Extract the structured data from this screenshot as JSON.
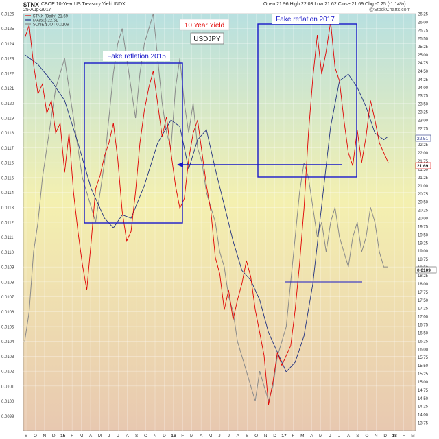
{
  "header": {
    "symbol": "$TNX",
    "description": "CBOE 10-Year US Treasury Yield INDX",
    "date": "25-Aug-2017",
    "ohlc": [
      {
        "label": "Open",
        "value": "21.96"
      },
      {
        "label": "High",
        "value": "22.03"
      },
      {
        "label": "Low",
        "value": "21.62"
      },
      {
        "label": "Close",
        "value": "21.69"
      },
      {
        "label": "Chg",
        "value": "-0.25 (-1.14%)"
      }
    ],
    "watermark": "@StockCharts.com"
  },
  "legend": [
    {
      "text": "$TNX (Daily) 21.69",
      "color": "#e00000"
    },
    {
      "text": "MA(50) 22.51",
      "color": "#203080"
    },
    {
      "text": "$ONE:$JOT 0.0109",
      "color": "#8a8a8a"
    }
  ],
  "annotations": {
    "red_label": "10 Year Yield",
    "usdjpy_label": "USDJPY",
    "box_2015": "Fake reflation 2015",
    "box_2017": "Fake reflation 2017"
  },
  "price_badges": {
    "ma": "22.51",
    "close": "21.69",
    "ratio": "0.0109"
  },
  "colors": {
    "tnx": "#e00000",
    "ma": "#203080",
    "ratio": "#8a8a8a",
    "annotation": "#1818c8",
    "bg_top": "#b8e0e0",
    "bg_mid": "#f4f0b0",
    "bg_bottom": "#e8c8b0"
  },
  "chart_data": {
    "type": "line",
    "left_axis": {
      "min": 0.0098,
      "max": 0.0126,
      "ticks": [
        "0.0126",
        "0.0125",
        "0.0124",
        "0.0123",
        "0.0122",
        "0.0121",
        "0.0120",
        "0.0119",
        "0.0118",
        "0.0117",
        "0.0116",
        "0.0115",
        "0.0114",
        "0.0113",
        "0.0112",
        "0.0111",
        "0.0110",
        "0.0109",
        "0.0108",
        "0.0107",
        "0.0106",
        "0.0105",
        "0.0104",
        "0.0103",
        "0.0102",
        "0.0101",
        "0.0100",
        "0.0099"
      ]
    },
    "right_axis": {
      "min": 13.5,
      "max": 26.25,
      "ticks": [
        "26.25",
        "26.00",
        "25.75",
        "25.50",
        "25.25",
        "25.00",
        "24.75",
        "24.50",
        "24.25",
        "24.00",
        "23.75",
        "23.50",
        "23.25",
        "23.00",
        "22.75",
        "22.50",
        "22.25",
        "22.00",
        "21.75",
        "21.50",
        "21.25",
        "21.00",
        "20.75",
        "20.50",
        "20.25",
        "20.00",
        "19.75",
        "19.50",
        "19.25",
        "19.00",
        "18.75",
        "18.50",
        "18.25",
        "18.00",
        "17.75",
        "17.50",
        "17.25",
        "17.00",
        "16.75",
        "16.50",
        "16.25",
        "16.00",
        "15.75",
        "15.50",
        "15.25",
        "15.00",
        "14.75",
        "14.50",
        "14.25",
        "14.00",
        "13.75"
      ]
    },
    "x_labels": [
      "S",
      "O",
      "N",
      "D",
      "15",
      "F",
      "M",
      "A",
      "M",
      "J",
      "J",
      "A",
      "S",
      "O",
      "N",
      "D",
      "16",
      "F",
      "M",
      "A",
      "M",
      "J",
      "J",
      "A",
      "S",
      "O",
      "N",
      "D",
      "17",
      "F",
      "M",
      "A",
      "M",
      "J",
      "J",
      "A",
      "S",
      "O",
      "N",
      "D",
      "18",
      "F",
      "M"
    ],
    "x_label_bold": [
      "15",
      "16",
      "17",
      "18"
    ],
    "series": [
      {
        "name": "$TNX (Daily) 21.69",
        "axis": "right",
        "points": [
          [
            0,
            25.5
          ],
          [
            1,
            25.9
          ],
          [
            2,
            24.7
          ],
          [
            3,
            23.8
          ],
          [
            4,
            24.1
          ],
          [
            5,
            23.2
          ],
          [
            6,
            23.6
          ],
          [
            7,
            22.6
          ],
          [
            8,
            22.9
          ],
          [
            9,
            21.4
          ],
          [
            10,
            22.6
          ],
          [
            11,
            20.8
          ],
          [
            12,
            19.6
          ],
          [
            13,
            18.6
          ],
          [
            14,
            17.8
          ],
          [
            15,
            19.3
          ],
          [
            16,
            20.9
          ],
          [
            17,
            21.3
          ],
          [
            18,
            21.9
          ],
          [
            19,
            22.3
          ],
          [
            20,
            22.9
          ],
          [
            21,
            21.8
          ],
          [
            22,
            20.2
          ],
          [
            23,
            19.3
          ],
          [
            24,
            19.6
          ],
          [
            25,
            20.8
          ],
          [
            26,
            22.3
          ],
          [
            27,
            23.3
          ],
          [
            28,
            24.0
          ],
          [
            29,
            24.5
          ],
          [
            30,
            23.5
          ],
          [
            31,
            22.5
          ],
          [
            32,
            23.1
          ],
          [
            33,
            22.0
          ],
          [
            34,
            21.0
          ],
          [
            35,
            20.3
          ],
          [
            36,
            20.6
          ],
          [
            37,
            21.8
          ],
          [
            38,
            22.6
          ],
          [
            39,
            23.0
          ],
          [
            40,
            22.0
          ],
          [
            41,
            21.0
          ],
          [
            42,
            20.2
          ],
          [
            43,
            18.8
          ],
          [
            44,
            18.3
          ],
          [
            45,
            17.2
          ],
          [
            46,
            17.8
          ],
          [
            47,
            16.9
          ],
          [
            48,
            17.5
          ],
          [
            49,
            18.0
          ],
          [
            50,
            18.7
          ],
          [
            51,
            18.2
          ],
          [
            52,
            17.2
          ],
          [
            53,
            16.5
          ],
          [
            54,
            15.8
          ],
          [
            55,
            14.3
          ],
          [
            56,
            15.0
          ],
          [
            57,
            15.9
          ],
          [
            58,
            15.5
          ],
          [
            59,
            15.8
          ],
          [
            60,
            16.1
          ],
          [
            61,
            17.2
          ],
          [
            62,
            18.6
          ],
          [
            63,
            20.3
          ],
          [
            64,
            22.6
          ],
          [
            65,
            24.3
          ],
          [
            66,
            25.6
          ],
          [
            67,
            24.4
          ],
          [
            68,
            25.1
          ],
          [
            69,
            26.0
          ],
          [
            70,
            24.6
          ],
          [
            71,
            24.2
          ],
          [
            72,
            23.0
          ],
          [
            73,
            22.0
          ],
          [
            74,
            21.6
          ],
          [
            75,
            22.7
          ],
          [
            76,
            21.7
          ],
          [
            77,
            22.5
          ],
          [
            78,
            23.6
          ],
          [
            79,
            23.0
          ],
          [
            80,
            22.3
          ],
          [
            81,
            22.0
          ],
          [
            82,
            21.7
          ]
        ]
      },
      {
        "name": "MA(50) 22.51",
        "axis": "right",
        "points": [
          [
            0,
            25.0
          ],
          [
            3,
            24.7
          ],
          [
            6,
            24.2
          ],
          [
            9,
            23.6
          ],
          [
            12,
            22.3
          ],
          [
            15,
            20.9
          ],
          [
            18,
            20.0
          ],
          [
            20,
            19.7
          ],
          [
            22,
            20.1
          ],
          [
            24,
            20.0
          ],
          [
            27,
            21.0
          ],
          [
            30,
            22.3
          ],
          [
            33,
            23.0
          ],
          [
            35,
            22.8
          ],
          [
            37,
            21.5
          ],
          [
            39,
            22.4
          ],
          [
            41,
            22.7
          ],
          [
            43,
            21.5
          ],
          [
            45,
            20.4
          ],
          [
            47,
            19.3
          ],
          [
            49,
            18.4
          ],
          [
            51,
            18.1
          ],
          [
            53,
            17.5
          ],
          [
            55,
            16.5
          ],
          [
            57,
            15.9
          ],
          [
            59,
            15.3
          ],
          [
            61,
            15.6
          ],
          [
            63,
            16.4
          ],
          [
            65,
            18.0
          ],
          [
            67,
            20.4
          ],
          [
            69,
            22.8
          ],
          [
            71,
            24.2
          ],
          [
            73,
            24.4
          ],
          [
            75,
            24.0
          ],
          [
            77,
            23.4
          ],
          [
            79,
            22.6
          ],
          [
            81,
            22.4
          ],
          [
            82,
            22.5
          ]
        ]
      },
      {
        "name": "$ONE:$JOT 0.0109",
        "axis": "left",
        "points": [
          [
            0,
            0.0104
          ],
          [
            1,
            0.0106
          ],
          [
            2,
            0.011
          ],
          [
            3,
            0.0112
          ],
          [
            4,
            0.0115
          ],
          [
            5,
            0.0117
          ],
          [
            6,
            0.0119
          ],
          [
            7,
            0.0121
          ],
          [
            8,
            0.0122
          ],
          [
            9,
            0.0123
          ],
          [
            10,
            0.0121
          ],
          [
            11,
            0.0119
          ],
          [
            12,
            0.0117
          ],
          [
            13,
            0.0115
          ],
          [
            14,
            0.0114
          ],
          [
            15,
            0.0113
          ],
          [
            16,
            0.0112
          ],
          [
            17,
            0.0114
          ],
          [
            18,
            0.0116
          ],
          [
            19,
            0.0119
          ],
          [
            20,
            0.0122
          ],
          [
            21,
            0.0124
          ],
          [
            22,
            0.0125
          ],
          [
            23,
            0.0123
          ],
          [
            24,
            0.0121
          ],
          [
            25,
            0.0119
          ],
          [
            26,
            0.0122
          ],
          [
            27,
            0.0124
          ],
          [
            28,
            0.0125
          ],
          [
            29,
            0.0126
          ],
          [
            30,
            0.0123
          ],
          [
            31,
            0.012
          ],
          [
            32,
            0.0118
          ],
          [
            33,
            0.0117
          ],
          [
            34,
            0.0121
          ],
          [
            35,
            0.0123
          ],
          [
            36,
            0.012
          ],
          [
            37,
            0.0118
          ],
          [
            38,
            0.012
          ],
          [
            39,
            0.0117
          ],
          [
            40,
            0.0116
          ],
          [
            41,
            0.0114
          ],
          [
            42,
            0.0113
          ],
          [
            43,
            0.0112
          ],
          [
            44,
            0.011
          ],
          [
            45,
            0.0109
          ],
          [
            46,
            0.0107
          ],
          [
            47,
            0.0106
          ],
          [
            48,
            0.0104
          ],
          [
            49,
            0.0103
          ],
          [
            50,
            0.0102
          ],
          [
            51,
            0.0101
          ],
          [
            52,
            0.01
          ],
          [
            53,
            0.0102
          ],
          [
            54,
            0.0101
          ],
          [
            55,
            0.01
          ],
          [
            56,
            0.0101
          ],
          [
            57,
            0.0103
          ],
          [
            58,
            0.0104
          ],
          [
            59,
            0.0105
          ],
          [
            60,
            0.0108
          ],
          [
            61,
            0.0111
          ],
          [
            62,
            0.0114
          ],
          [
            63,
            0.0116
          ],
          [
            64,
            0.0115
          ],
          [
            65,
            0.0113
          ],
          [
            66,
            0.0111
          ],
          [
            67,
            0.0112
          ],
          [
            68,
            0.011
          ],
          [
            69,
            0.0112
          ],
          [
            70,
            0.0113
          ],
          [
            71,
            0.0111
          ],
          [
            72,
            0.011
          ],
          [
            73,
            0.0109
          ],
          [
            74,
            0.0111
          ],
          [
            75,
            0.0112
          ],
          [
            76,
            0.011
          ],
          [
            77,
            0.0111
          ],
          [
            78,
            0.0113
          ],
          [
            79,
            0.0112
          ],
          [
            80,
            0.011
          ],
          [
            81,
            0.0109
          ],
          [
            82,
            0.0109
          ]
        ]
      }
    ]
  }
}
